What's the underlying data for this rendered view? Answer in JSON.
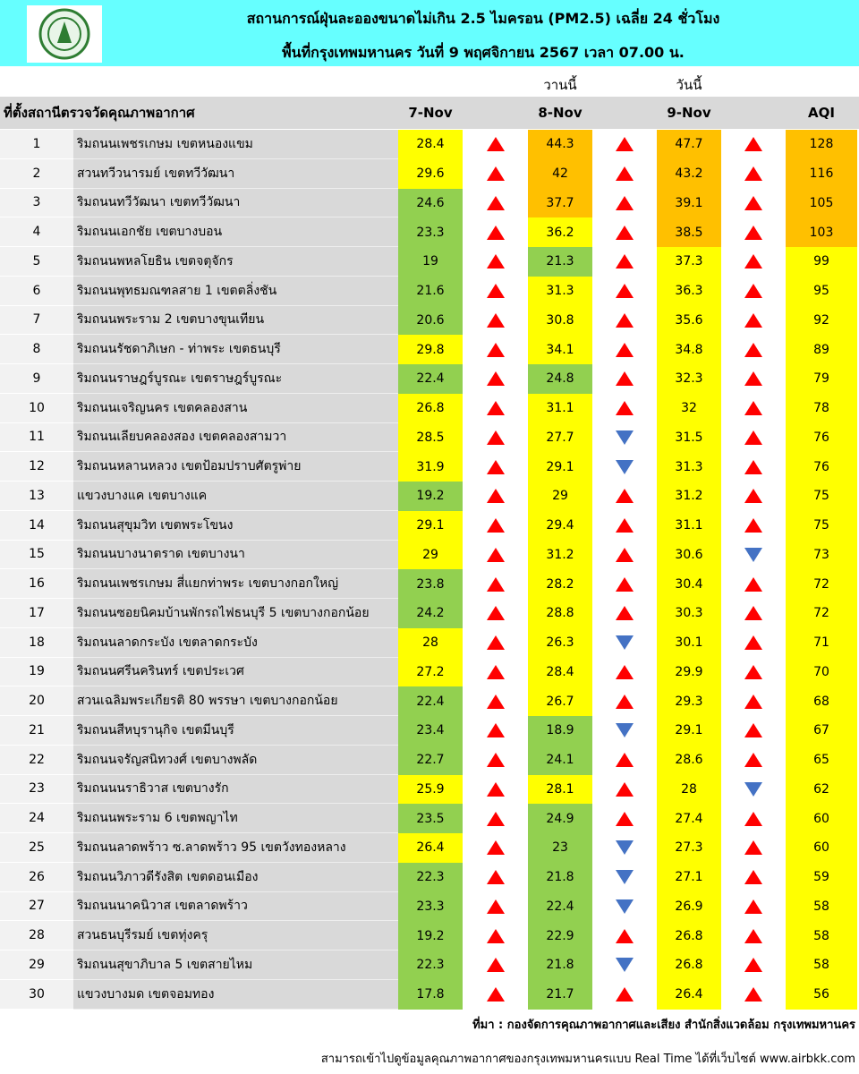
{
  "header": {
    "title_line1": "สถานการณ์ฝุ่นละอองขนาดไม่เกิน 2.5 ไมครอน (PM2.5) เฉลี่ย 24 ชั่วโมง",
    "title_line2": "พื้นที่กรุงเทพมหานคร วันที่ 9 พฤศจิกายน 2567 เวลา 07.00 น."
  },
  "column_notes": {
    "yesterday": "วานนี้",
    "today": "วันนี้"
  },
  "table": {
    "columns": [
      "ที่ตั้งสถานีตรวจวัดคุณภาพอากาศ",
      "7-Nov",
      "8-Nov",
      "9-Nov",
      "AQI"
    ],
    "rows": [
      [
        1,
        "ริมถนนเพชรเกษม เขตหนองแขม",
        28.4,
        44.3,
        47.7,
        128
      ],
      [
        2,
        "สวนทวีวนารมย์ เขตทวีวัฒนา",
        29.6,
        42,
        43.2,
        116
      ],
      [
        3,
        "ริมถนนทวีวัฒนา เขตทวีวัฒนา",
        24.6,
        37.7,
        39.1,
        105
      ],
      [
        4,
        "ริมถนนเอกชัย เขตบางบอน",
        23.3,
        36.2,
        38.5,
        103
      ],
      [
        5,
        "ริมถนนพหลโยธิน เขตจตุจักร",
        19,
        21.3,
        37.3,
        99
      ],
      [
        6,
        "ริมถนนพุทธมณฑลสาย 1 เขตตลิ่งชัน",
        21.6,
        31.3,
        36.3,
        95
      ],
      [
        7,
        "ริมถนนพระราม 2 เขตบางขุนเทียน",
        20.6,
        30.8,
        35.6,
        92
      ],
      [
        8,
        "ริมถนนรัชดาภิเษก - ท่าพระ เขตธนบุรี",
        29.8,
        34.1,
        34.8,
        89
      ],
      [
        9,
        "ริมถนนราษฎร์บูรณะ เขตราษฎร์บูรณะ",
        22.4,
        24.8,
        32.3,
        79
      ],
      [
        10,
        "ริมถนนเจริญนคร เขตคลองสาน",
        26.8,
        31.1,
        32,
        78
      ],
      [
        11,
        "ริมถนนเลียบคลองสอง เขตคลองสามวา",
        28.5,
        27.7,
        31.5,
        76
      ],
      [
        12,
        "ริมถนนหลานหลวง เขตป้อมปราบศัตรูพ่าย",
        31.9,
        29.1,
        31.3,
        76
      ],
      [
        13,
        "แขวงบางแค เขตบางแค",
        19.2,
        29,
        31.2,
        75
      ],
      [
        14,
        "ริมถนนสุขุมวิท เขตพระโขนง",
        29.1,
        29.4,
        31.1,
        75
      ],
      [
        15,
        "ริมถนนบางนาตราด เขตบางนา",
        29,
        31.2,
        30.6,
        73
      ],
      [
        16,
        "ริมถนนเพชรเกษม สี่แยกท่าพระ เขตบางกอกใหญ่",
        23.8,
        28.2,
        30.4,
        72
      ],
      [
        17,
        "ริมถนนซอยนิคมบ้านพักรถไฟธนบุรี 5 เขตบางกอกน้อย",
        24.2,
        28.8,
        30.3,
        72
      ],
      [
        18,
        "ริมถนนลาดกระบัง เขตลาดกระบัง",
        28,
        26.3,
        30.1,
        71
      ],
      [
        19,
        "ริมถนนศรีนครินทร์ เขตประเวศ",
        27.2,
        28.4,
        29.9,
        70
      ],
      [
        20,
        "สวนเฉลิมพระเกียรติ 80 พรรษา  เขตบางกอกน้อย",
        22.4,
        26.7,
        29.3,
        68
      ],
      [
        21,
        "ริมถนนสีหบุรานุกิจ เขตมีนบุรี",
        23.4,
        18.9,
        29.1,
        67
      ],
      [
        22,
        "ริมถนนจรัญสนิทวงศ์ เขตบางพลัด",
        22.7,
        24.1,
        28.6,
        65
      ],
      [
        23,
        "ริมถนนนราธิวาส เขตบางรัก",
        25.9,
        28.1,
        28,
        62
      ],
      [
        24,
        "ริมถนนพระราม 6 เขตพญาไท",
        23.5,
        24.9,
        27.4,
        60
      ],
      [
        25,
        "ริมถนนลาดพร้าว ซ.ลาดพร้าว 95 เขตวังทองหลาง",
        26.4,
        23,
        27.3,
        60
      ],
      [
        26,
        "ริมถนนวิภาวดีรังสิต เขตดอนเมือง",
        22.3,
        21.8,
        27.1,
        59
      ],
      [
        27,
        "ริมถนนนาคนิวาส เขตลาดพร้าว",
        23.3,
        22.4,
        26.9,
        58
      ],
      [
        28,
        "สวนธนบุรีรมย์ เขตทุ่งครุ",
        19.2,
        22.9,
        26.8,
        58
      ],
      [
        29,
        "ริมถนนสุขาภิบาล 5 เขตสายไหม",
        22.3,
        21.8,
        26.8,
        58
      ],
      [
        30,
        "แขวงบางมด เขตจอมทอง",
        17.8,
        21.7,
        26.4,
        56
      ]
    ]
  },
  "color_scale": {
    "pm25": [
      [
        25,
        "#92d050"
      ],
      [
        37.5,
        "#ffff00"
      ],
      [
        75,
        "#ffc000"
      ]
    ],
    "aqi": [
      [
        50,
        "#92d050"
      ],
      [
        100,
        "#ffff00"
      ],
      [
        200,
        "#ffc000"
      ]
    ]
  },
  "footer": {
    "source": "ที่มา : กองจัดการคุณภาพอากาศและเสียง สำนักสิ่งแวดล้อม กรุงเทพมหานคร",
    "website": "สามารถเข้าไปดูข้อมูลคุณภาพอากาศของกรุงเทพมหานครแบบ Real Time ได้ที่เว็บไซต์ www.airbkk.com"
  }
}
